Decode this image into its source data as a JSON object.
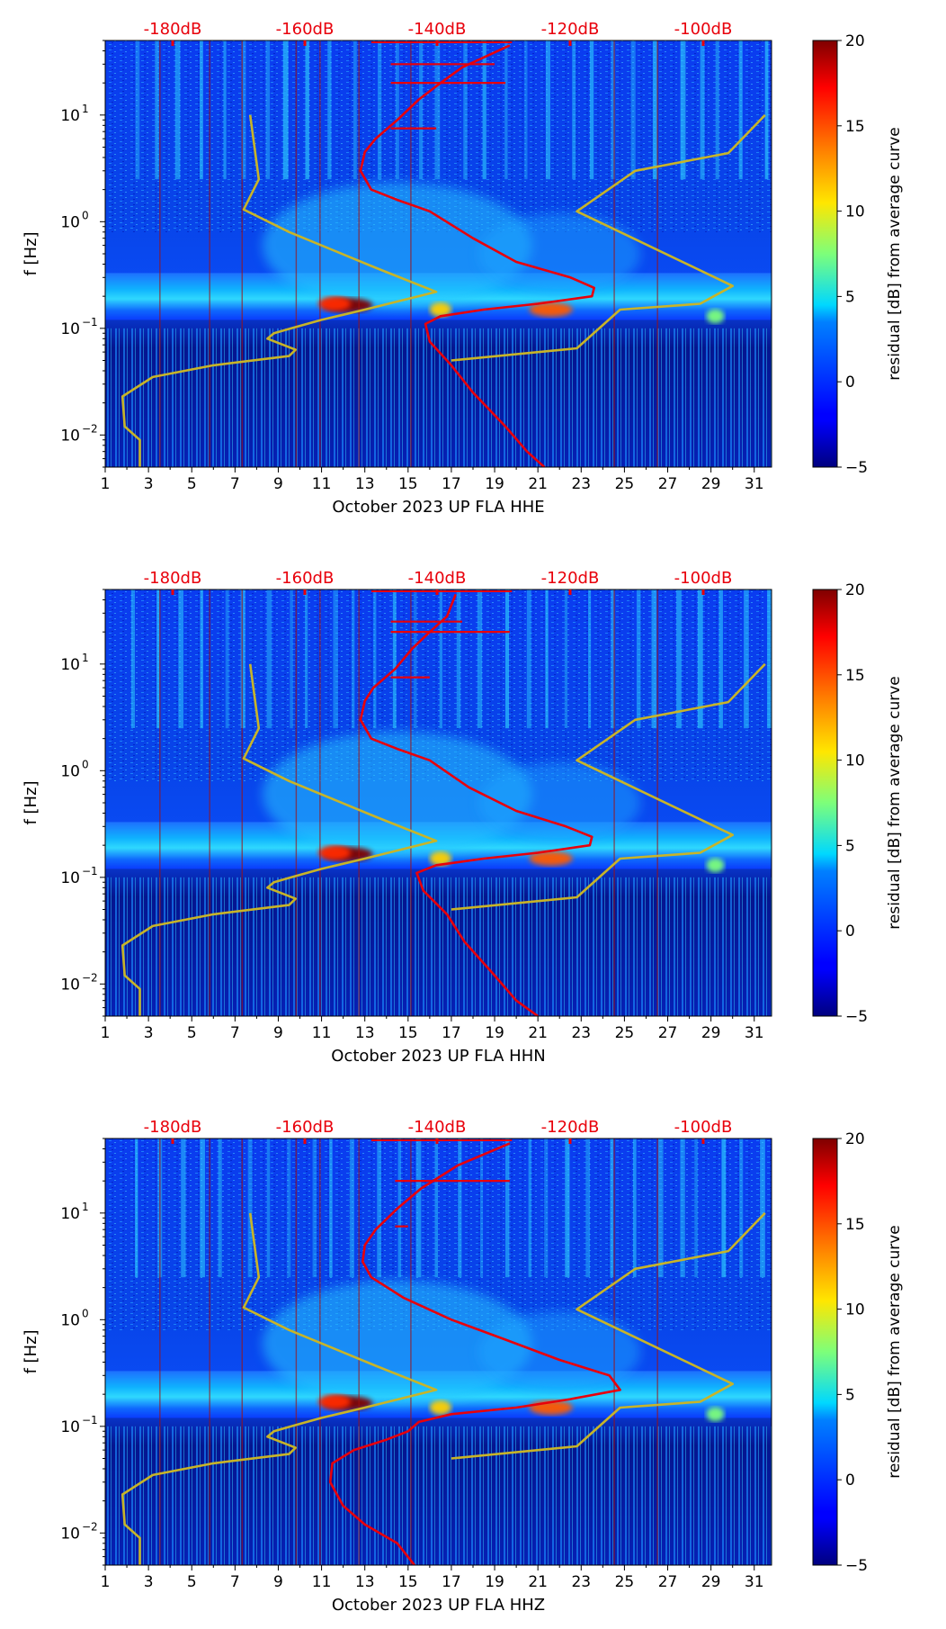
{
  "chart_data": [
    {
      "type": "heatmap",
      "title": "",
      "xlabel": "October 2023 UP FLA  HHE",
      "ylabel": "f [Hz]",
      "x_ticks": [
        "1",
        "3",
        "5",
        "7",
        "9",
        "11",
        "13",
        "15",
        "17",
        "19",
        "21",
        "23",
        "25",
        "27",
        "29",
        "31"
      ],
      "x_range": [
        1,
        31.8
      ],
      "y_range": [
        0.005,
        50
      ],
      "y_ticks": [
        {
          "value": 0.01,
          "base": "10",
          "exp": "−2"
        },
        {
          "value": 0.1,
          "base": "10",
          "exp": "−1"
        },
        {
          "value": 1,
          "base": "10",
          "exp": "0"
        },
        {
          "value": 10,
          "base": "10",
          "exp": "1"
        }
      ],
      "top_axis_labels": [
        "-180dB",
        "-160dB",
        "-140dB",
        "-120dB",
        "-100dB"
      ],
      "top_axis_color": "#e8000b",
      "colorbar": {
        "label": "residual [dB] from average curve",
        "ticks": [
          "−5",
          "0",
          "5",
          "10",
          "15",
          "20"
        ],
        "range": [
          -5,
          20
        ]
      },
      "series": [
        {
          "name": "noise model (yellow)",
          "color": "#c8b428",
          "points": [
            [
              2.6,
              0.005
            ],
            [
              2.6,
              0.009
            ],
            [
              1.9,
              0.012
            ],
            [
              1.8,
              0.023
            ],
            [
              3.2,
              0.035
            ],
            [
              6,
              0.045
            ],
            [
              9.5,
              0.055
            ],
            [
              9.8,
              0.063
            ],
            [
              8.5,
              0.08
            ],
            [
              8.8,
              0.09
            ],
            [
              9.6,
              0.1
            ],
            [
              11,
              0.12
            ],
            [
              13,
              0.15
            ],
            [
              16.3,
              0.22
            ],
            [
              13.5,
              0.37
            ],
            [
              9.5,
              0.8
            ],
            [
              7.4,
              1.3
            ],
            [
              8.1,
              2.5
            ],
            [
              7.7,
              10
            ],
            [
              17,
              0.05
            ],
            [
              22.8,
              0.065
            ],
            [
              24.8,
              0.15
            ],
            [
              28.5,
              0.17
            ],
            [
              30,
              0.25
            ],
            [
              22.8,
              1.25
            ],
            [
              25.5,
              3
            ],
            [
              29.8,
              4.4
            ],
            [
              31.5,
              10
            ]
          ]
        },
        {
          "name": "average spectrum (red)",
          "color": "#e8000b",
          "points": [
            [
              21.3,
              0.005
            ],
            [
              20.5,
              0.007
            ],
            [
              19.5,
              0.012
            ],
            [
              18,
              0.025
            ],
            [
              17,
              0.045
            ],
            [
              16,
              0.075
            ],
            [
              15.8,
              0.11
            ],
            [
              16.5,
              0.13
            ],
            [
              18.5,
              0.15
            ],
            [
              21,
              0.17
            ],
            [
              23.5,
              0.2
            ],
            [
              23.6,
              0.24
            ],
            [
              22.5,
              0.3
            ],
            [
              20,
              0.42
            ],
            [
              18,
              0.7
            ],
            [
              16,
              1.25
            ],
            [
              14.5,
              1.6
            ],
            [
              13.3,
              2
            ],
            [
              12.8,
              3
            ],
            [
              13,
              4.5
            ],
            [
              13.5,
              6
            ],
            [
              14.5,
              9
            ],
            [
              15.5,
              14
            ],
            [
              16.5,
              20
            ],
            [
              17.5,
              28
            ],
            [
              19.7,
              45
            ]
          ]
        }
      ],
      "spikes": [
        {
          "x": 16.3,
          "y": 7.5
        },
        {
          "x": 19.5,
          "y": 20
        },
        {
          "x": 19,
          "y": 30
        }
      ]
    },
    {
      "type": "heatmap",
      "title": "",
      "xlabel": "October 2023 UP FLA  HHN",
      "ylabel": "f [Hz]",
      "x_ticks": [
        "1",
        "3",
        "5",
        "7",
        "9",
        "11",
        "13",
        "15",
        "17",
        "19",
        "21",
        "23",
        "25",
        "27",
        "29",
        "31"
      ],
      "x_range": [
        1,
        31.8
      ],
      "y_range": [
        0.005,
        50
      ],
      "y_ticks": [
        {
          "value": 0.01,
          "base": "10",
          "exp": "−2"
        },
        {
          "value": 0.1,
          "base": "10",
          "exp": "−1"
        },
        {
          "value": 1,
          "base": "10",
          "exp": "0"
        },
        {
          "value": 10,
          "base": "10",
          "exp": "1"
        }
      ],
      "top_axis_labels": [
        "-180dB",
        "-160dB",
        "-140dB",
        "-120dB",
        "-100dB"
      ],
      "top_axis_color": "#e8000b",
      "colorbar": {
        "label": "residual [dB] from average curve",
        "ticks": [
          "−5",
          "0",
          "5",
          "10",
          "15",
          "20"
        ],
        "range": [
          -5,
          20
        ]
      },
      "series": [
        {
          "name": "noise model (yellow)",
          "color": "#c8b428",
          "points": [
            [
              2.6,
              0.005
            ],
            [
              2.6,
              0.009
            ],
            [
              1.9,
              0.012
            ],
            [
              1.8,
              0.023
            ],
            [
              3.2,
              0.035
            ],
            [
              6,
              0.045
            ],
            [
              9.5,
              0.055
            ],
            [
              9.8,
              0.063
            ],
            [
              8.5,
              0.08
            ],
            [
              8.8,
              0.09
            ],
            [
              9.6,
              0.1
            ],
            [
              11,
              0.12
            ],
            [
              13,
              0.15
            ],
            [
              16.3,
              0.22
            ],
            [
              13.5,
              0.37
            ],
            [
              9.5,
              0.8
            ],
            [
              7.4,
              1.3
            ],
            [
              8.1,
              2.5
            ],
            [
              7.7,
              10
            ],
            [
              17,
              0.05
            ],
            [
              22.8,
              0.065
            ],
            [
              24.8,
              0.15
            ],
            [
              28.5,
              0.17
            ],
            [
              30,
              0.25
            ],
            [
              22.8,
              1.25
            ],
            [
              25.5,
              3
            ],
            [
              29.8,
              4.4
            ],
            [
              31.5,
              10
            ]
          ]
        },
        {
          "name": "average spectrum (red)",
          "color": "#e8000b",
          "points": [
            [
              21,
              0.005
            ],
            [
              20,
              0.007
            ],
            [
              19,
              0.012
            ],
            [
              17.6,
              0.025
            ],
            [
              16.8,
              0.045
            ],
            [
              15.7,
              0.075
            ],
            [
              15.4,
              0.11
            ],
            [
              16.3,
              0.13
            ],
            [
              18.5,
              0.15
            ],
            [
              21,
              0.17
            ],
            [
              23.4,
              0.2
            ],
            [
              23.5,
              0.24
            ],
            [
              22.3,
              0.3
            ],
            [
              20,
              0.42
            ],
            [
              17.8,
              0.7
            ],
            [
              16,
              1.25
            ],
            [
              14.5,
              1.6
            ],
            [
              13.3,
              2
            ],
            [
              12.8,
              3
            ],
            [
              13,
              4.5
            ],
            [
              13.4,
              6
            ],
            [
              14.4,
              9
            ],
            [
              15.2,
              14
            ],
            [
              16,
              20
            ],
            [
              16.8,
              28
            ],
            [
              17.2,
              45
            ]
          ]
        }
      ],
      "spikes": [
        {
          "x": 16.0,
          "y": 7.5
        },
        {
          "x": 19.7,
          "y": 20
        },
        {
          "x": 17.5,
          "y": 25
        }
      ]
    },
    {
      "type": "heatmap",
      "title": "",
      "xlabel": "October 2023 UP FLA  HHZ",
      "ylabel": "f [Hz]",
      "x_ticks": [
        "1",
        "3",
        "5",
        "7",
        "9",
        "11",
        "13",
        "15",
        "17",
        "19",
        "21",
        "23",
        "25",
        "27",
        "29",
        "31"
      ],
      "x_range": [
        1,
        31.8
      ],
      "y_range": [
        0.005,
        50
      ],
      "y_ticks": [
        {
          "value": 0.01,
          "base": "10",
          "exp": "−2"
        },
        {
          "value": 0.1,
          "base": "10",
          "exp": "−1"
        },
        {
          "value": 1,
          "base": "10",
          "exp": "0"
        },
        {
          "value": 10,
          "base": "10",
          "exp": "1"
        }
      ],
      "top_axis_labels": [
        "-180dB",
        "-160dB",
        "-140dB",
        "-120dB",
        "-100dB"
      ],
      "top_axis_color": "#e8000b",
      "colorbar": {
        "label": "residual [dB] from average curve",
        "ticks": [
          "−5",
          "0",
          "5",
          "10",
          "15",
          "20"
        ],
        "range": [
          -5,
          20
        ]
      },
      "series": [
        {
          "name": "noise model (yellow)",
          "color": "#c8b428",
          "points": [
            [
              2.6,
              0.005
            ],
            [
              2.6,
              0.009
            ],
            [
              1.9,
              0.012
            ],
            [
              1.8,
              0.023
            ],
            [
              3.2,
              0.035
            ],
            [
              6,
              0.045
            ],
            [
              9.5,
              0.055
            ],
            [
              9.8,
              0.063
            ],
            [
              8.5,
              0.08
            ],
            [
              8.8,
              0.09
            ],
            [
              9.6,
              0.1
            ],
            [
              11,
              0.12
            ],
            [
              13,
              0.15
            ],
            [
              16.3,
              0.22
            ],
            [
              13.5,
              0.37
            ],
            [
              9.5,
              0.8
            ],
            [
              7.4,
              1.3
            ],
            [
              8.1,
              2.5
            ],
            [
              7.7,
              10
            ],
            [
              17,
              0.05
            ],
            [
              22.8,
              0.065
            ],
            [
              24.8,
              0.15
            ],
            [
              28.5,
              0.17
            ],
            [
              30,
              0.25
            ],
            [
              22.8,
              1.25
            ],
            [
              25.5,
              3
            ],
            [
              29.8,
              4.4
            ],
            [
              31.5,
              10
            ]
          ]
        },
        {
          "name": "average spectrum (red)",
          "color": "#e8000b",
          "points": [
            [
              15.3,
              0.005
            ],
            [
              14.5,
              0.008
            ],
            [
              13,
              0.012
            ],
            [
              12,
              0.018
            ],
            [
              11.4,
              0.03
            ],
            [
              11.5,
              0.045
            ],
            [
              12.5,
              0.06
            ],
            [
              14,
              0.075
            ],
            [
              15,
              0.09
            ],
            [
              15.5,
              0.11
            ],
            [
              17,
              0.13
            ],
            [
              20,
              0.15
            ],
            [
              22.5,
              0.18
            ],
            [
              24.8,
              0.22
            ],
            [
              24.3,
              0.3
            ],
            [
              22,
              0.42
            ],
            [
              19.5,
              0.65
            ],
            [
              17,
              1.0
            ],
            [
              14.8,
              1.6
            ],
            [
              13.3,
              2.5
            ],
            [
              12.9,
              3.5
            ],
            [
              13,
              5
            ],
            [
              13.5,
              7
            ],
            [
              14.5,
              11
            ],
            [
              15.6,
              17
            ],
            [
              17.3,
              28
            ],
            [
              19.7,
              45
            ]
          ]
        }
      ],
      "spikes": [
        {
          "x": 15.0,
          "y": 7.5
        },
        {
          "x": 19.7,
          "y": 20
        }
      ]
    }
  ]
}
